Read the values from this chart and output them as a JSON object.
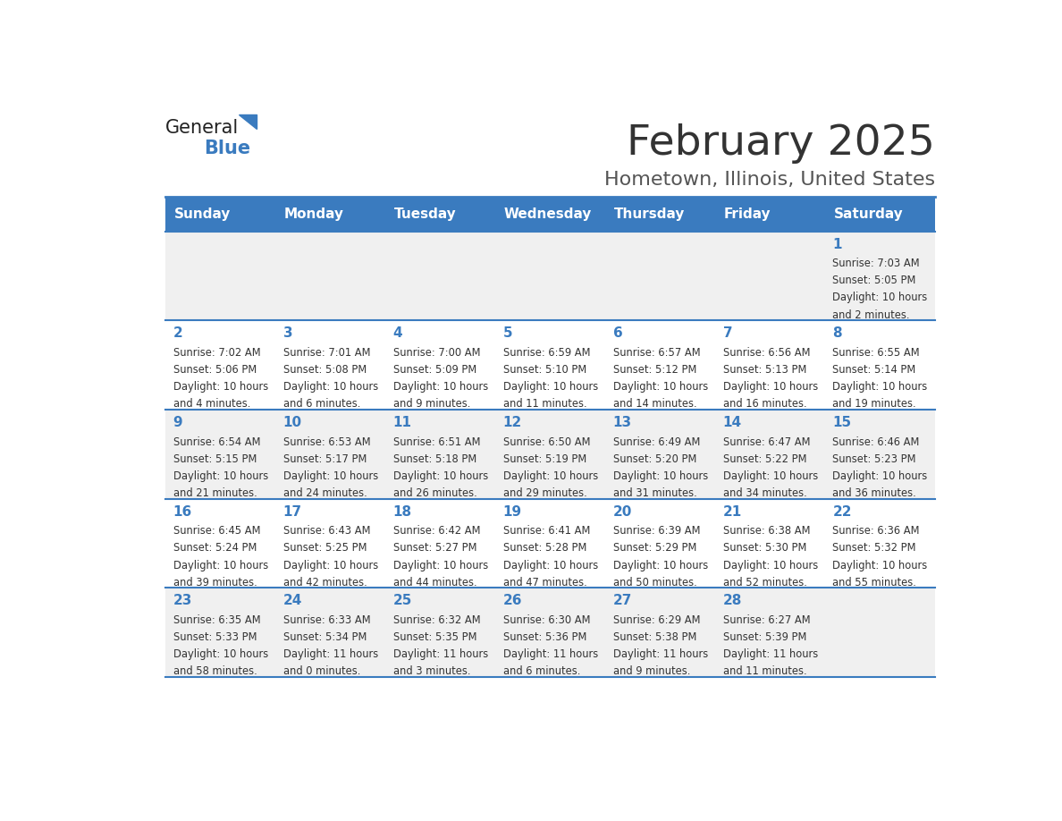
{
  "title": "February 2025",
  "subtitle": "Hometown, Illinois, United States",
  "header_color": "#3a7bbf",
  "header_text_color": "#ffffff",
  "day_names": [
    "Sunday",
    "Monday",
    "Tuesday",
    "Wednesday",
    "Thursday",
    "Friday",
    "Saturday"
  ],
  "row_bg_colors": [
    "#f0f0f0",
    "#ffffff"
  ],
  "date_color": "#3a7bbf",
  "text_color": "#333333",
  "line_color": "#3a7bbf",
  "title_color": "#333333",
  "subtitle_color": "#555555",
  "calendar": [
    [
      {
        "day": 0,
        "text": ""
      },
      {
        "day": 0,
        "text": ""
      },
      {
        "day": 0,
        "text": ""
      },
      {
        "day": 0,
        "text": ""
      },
      {
        "day": 0,
        "text": ""
      },
      {
        "day": 0,
        "text": ""
      },
      {
        "day": 1,
        "text": "Sunrise: 7:03 AM\nSunset: 5:05 PM\nDaylight: 10 hours\nand 2 minutes."
      }
    ],
    [
      {
        "day": 2,
        "text": "Sunrise: 7:02 AM\nSunset: 5:06 PM\nDaylight: 10 hours\nand 4 minutes."
      },
      {
        "day": 3,
        "text": "Sunrise: 7:01 AM\nSunset: 5:08 PM\nDaylight: 10 hours\nand 6 minutes."
      },
      {
        "day": 4,
        "text": "Sunrise: 7:00 AM\nSunset: 5:09 PM\nDaylight: 10 hours\nand 9 minutes."
      },
      {
        "day": 5,
        "text": "Sunrise: 6:59 AM\nSunset: 5:10 PM\nDaylight: 10 hours\nand 11 minutes."
      },
      {
        "day": 6,
        "text": "Sunrise: 6:57 AM\nSunset: 5:12 PM\nDaylight: 10 hours\nand 14 minutes."
      },
      {
        "day": 7,
        "text": "Sunrise: 6:56 AM\nSunset: 5:13 PM\nDaylight: 10 hours\nand 16 minutes."
      },
      {
        "day": 8,
        "text": "Sunrise: 6:55 AM\nSunset: 5:14 PM\nDaylight: 10 hours\nand 19 minutes."
      }
    ],
    [
      {
        "day": 9,
        "text": "Sunrise: 6:54 AM\nSunset: 5:15 PM\nDaylight: 10 hours\nand 21 minutes."
      },
      {
        "day": 10,
        "text": "Sunrise: 6:53 AM\nSunset: 5:17 PM\nDaylight: 10 hours\nand 24 minutes."
      },
      {
        "day": 11,
        "text": "Sunrise: 6:51 AM\nSunset: 5:18 PM\nDaylight: 10 hours\nand 26 minutes."
      },
      {
        "day": 12,
        "text": "Sunrise: 6:50 AM\nSunset: 5:19 PM\nDaylight: 10 hours\nand 29 minutes."
      },
      {
        "day": 13,
        "text": "Sunrise: 6:49 AM\nSunset: 5:20 PM\nDaylight: 10 hours\nand 31 minutes."
      },
      {
        "day": 14,
        "text": "Sunrise: 6:47 AM\nSunset: 5:22 PM\nDaylight: 10 hours\nand 34 minutes."
      },
      {
        "day": 15,
        "text": "Sunrise: 6:46 AM\nSunset: 5:23 PM\nDaylight: 10 hours\nand 36 minutes."
      }
    ],
    [
      {
        "day": 16,
        "text": "Sunrise: 6:45 AM\nSunset: 5:24 PM\nDaylight: 10 hours\nand 39 minutes."
      },
      {
        "day": 17,
        "text": "Sunrise: 6:43 AM\nSunset: 5:25 PM\nDaylight: 10 hours\nand 42 minutes."
      },
      {
        "day": 18,
        "text": "Sunrise: 6:42 AM\nSunset: 5:27 PM\nDaylight: 10 hours\nand 44 minutes."
      },
      {
        "day": 19,
        "text": "Sunrise: 6:41 AM\nSunset: 5:28 PM\nDaylight: 10 hours\nand 47 minutes."
      },
      {
        "day": 20,
        "text": "Sunrise: 6:39 AM\nSunset: 5:29 PM\nDaylight: 10 hours\nand 50 minutes."
      },
      {
        "day": 21,
        "text": "Sunrise: 6:38 AM\nSunset: 5:30 PM\nDaylight: 10 hours\nand 52 minutes."
      },
      {
        "day": 22,
        "text": "Sunrise: 6:36 AM\nSunset: 5:32 PM\nDaylight: 10 hours\nand 55 minutes."
      }
    ],
    [
      {
        "day": 23,
        "text": "Sunrise: 6:35 AM\nSunset: 5:33 PM\nDaylight: 10 hours\nand 58 minutes."
      },
      {
        "day": 24,
        "text": "Sunrise: 6:33 AM\nSunset: 5:34 PM\nDaylight: 11 hours\nand 0 minutes."
      },
      {
        "day": 25,
        "text": "Sunrise: 6:32 AM\nSunset: 5:35 PM\nDaylight: 11 hours\nand 3 minutes."
      },
      {
        "day": 26,
        "text": "Sunrise: 6:30 AM\nSunset: 5:36 PM\nDaylight: 11 hours\nand 6 minutes."
      },
      {
        "day": 27,
        "text": "Sunrise: 6:29 AM\nSunset: 5:38 PM\nDaylight: 11 hours\nand 9 minutes."
      },
      {
        "day": 28,
        "text": "Sunrise: 6:27 AM\nSunset: 5:39 PM\nDaylight: 11 hours\nand 11 minutes."
      },
      {
        "day": 0,
        "text": ""
      }
    ]
  ]
}
